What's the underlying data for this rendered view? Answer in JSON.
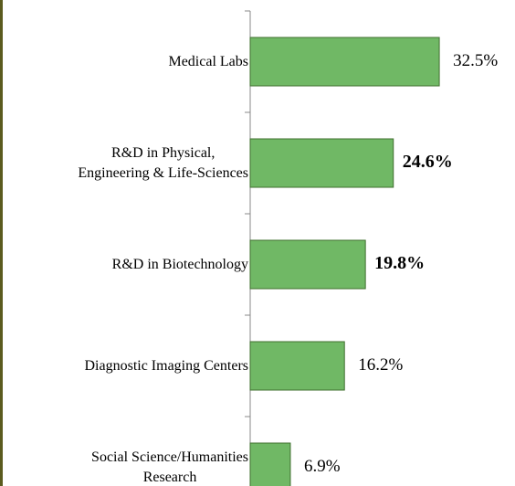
{
  "chart_data": {
    "type": "bar",
    "orientation": "horizontal",
    "categories": [
      "Medical Labs",
      "R&D in Physical,\nEngineering & Life-Sciences",
      "R&D in Biotechnology",
      "Diagnostic Imaging Centers",
      "Social Science/Humanities\nResearch"
    ],
    "values": [
      32.5,
      24.6,
      19.8,
      16.2,
      6.9
    ],
    "value_labels": [
      "32.5%",
      "24.6%",
      "19.8%",
      "16.2%",
      "6.9%"
    ],
    "bold_labels": [
      false,
      true,
      true,
      false,
      false
    ],
    "color": "#70b865",
    "xlim": [
      0,
      35
    ]
  }
}
